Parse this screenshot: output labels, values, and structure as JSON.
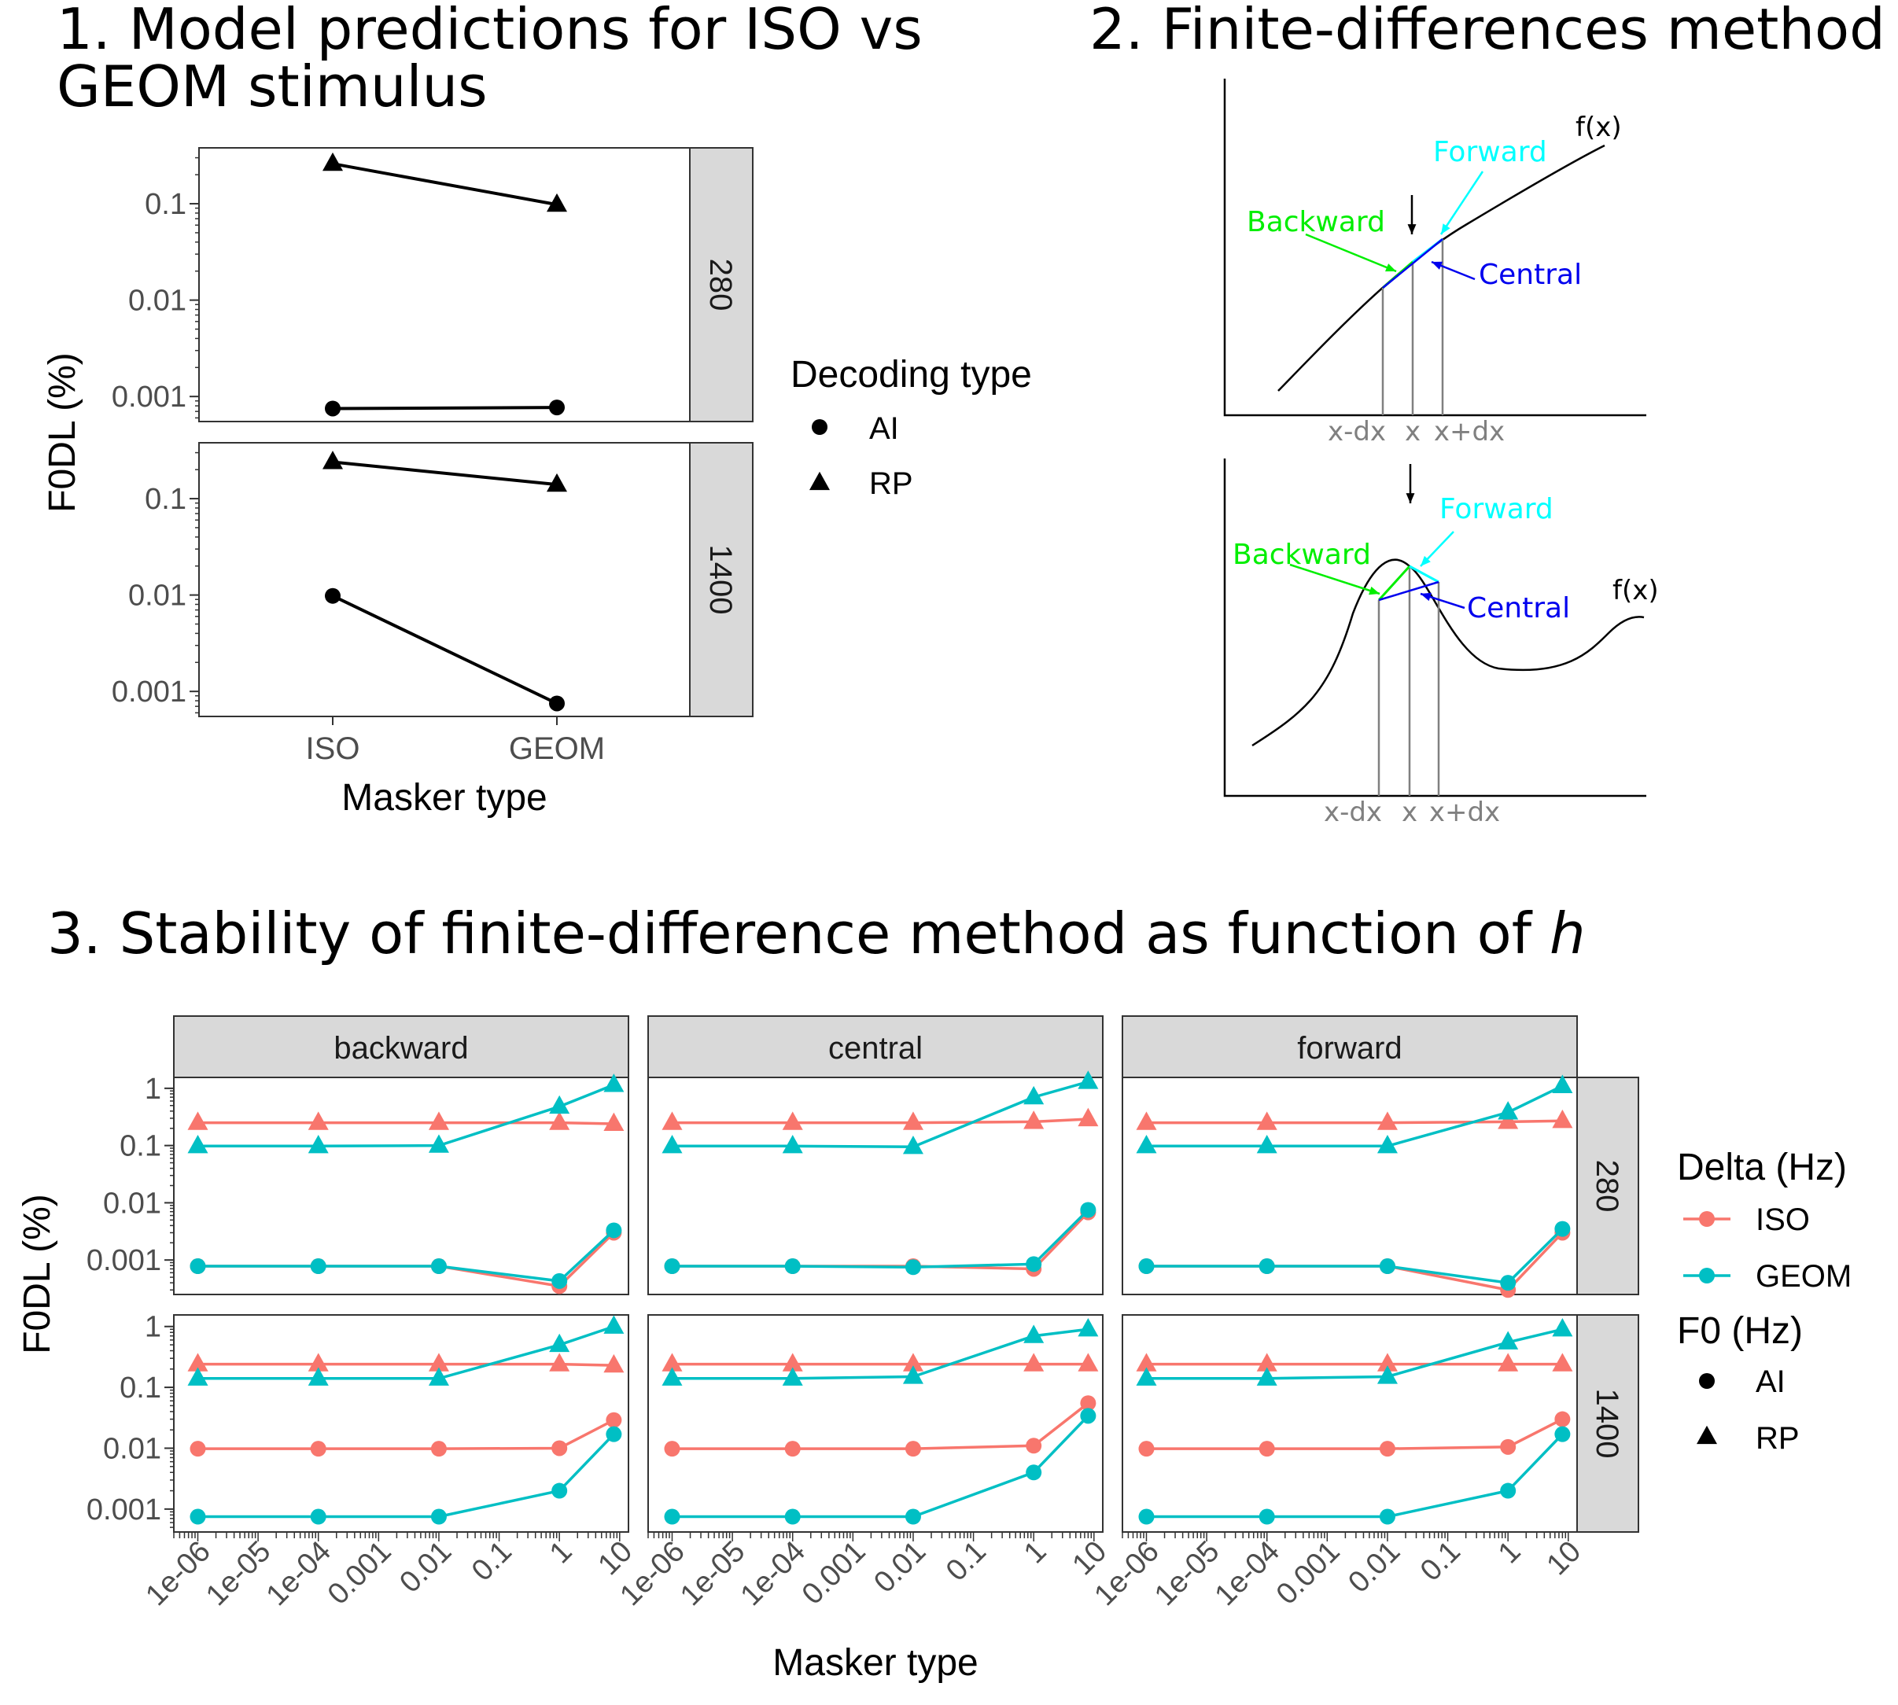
{
  "panel1": {
    "title_line1": "1. Model predictions for ISO vs",
    "title_line2": "GEOM stimulus"
  },
  "panel2": {
    "title": "2. Finite-differences method",
    "top": {
      "fx": "f(x)",
      "forward": "Forward",
      "backward": "Backward",
      "central": "Central",
      "ticks": [
        "x-dx",
        "x",
        "x+dx"
      ]
    },
    "bottom": {
      "fx": "f(x)",
      "forward": "Forward",
      "backward": "Backward",
      "central": "Central",
      "ticks": [
        "x-dx",
        "x",
        "x+dx"
      ]
    },
    "colors": {
      "forward": "#00ffff",
      "backward": "#00ee00",
      "central": "#0000ee"
    }
  },
  "panel3": {
    "title": "3. Stability of finite-difference method as function of ",
    "title_italic": "h"
  },
  "chart_data": [
    {
      "type": "line",
      "xlabel": "Masker type",
      "ylabel": "F0DL (%)",
      "categories": [
        "ISO",
        "GEOM"
      ],
      "y_scale": "log10",
      "y_ticks": [
        "0.001",
        "0.01",
        "0.1"
      ],
      "facets": [
        "280",
        "1400"
      ],
      "legend": {
        "title": "Decoding type",
        "entries": [
          "AI",
          "RP"
        ],
        "placement": "right"
      },
      "series": [
        {
          "name": "AI",
          "facet": "280",
          "values": [
            0.00075,
            0.00077
          ]
        },
        {
          "name": "RP",
          "facet": "280",
          "values": [
            0.26,
            0.098
          ]
        },
        {
          "name": "AI",
          "facet": "1400",
          "values": [
            0.0098,
            0.00075
          ]
        },
        {
          "name": "RP",
          "facet": "1400",
          "values": [
            0.24,
            0.14
          ]
        }
      ],
      "color": "#000000"
    },
    {
      "type": "line",
      "xlabel": "Masker type",
      "ylabel": "F0DL (%)",
      "x_scale": "log10",
      "x_ticks": [
        "1e-06",
        "1e-05",
        "1e-04",
        "0.001",
        "0.01",
        "0.1",
        "1",
        "10"
      ],
      "y_scale": "log10",
      "y_ticks": [
        "0.001",
        "0.01",
        "0.1",
        "1"
      ],
      "col_facets": [
        "backward",
        "central",
        "forward"
      ],
      "row_facets": [
        "280",
        "1400"
      ],
      "legend": {
        "color_title": "Delta (Hz)",
        "color_entries": [
          "ISO",
          "GEOM"
        ],
        "shape_title": "F0 (Hz)",
        "shape_entries": [
          "AI",
          "RP"
        ],
        "placement": "right"
      },
      "colors": {
        "ISO": "#f8766d",
        "GEOM": "#00bfc4"
      },
      "x": [
        1e-06,
        0.0001,
        0.01,
        1,
        8
      ],
      "panels": [
        {
          "col": "backward",
          "row": "280",
          "series": [
            {
              "name": "ISO",
              "shape": "RP",
              "values": [
                0.25,
                0.25,
                0.25,
                0.25,
                0.24
              ]
            },
            {
              "name": "GEOM",
              "shape": "RP",
              "values": [
                0.098,
                0.098,
                0.1,
                0.48,
                1.15
              ]
            },
            {
              "name": "ISO",
              "shape": "AI",
              "values": [
                0.00078,
                0.00078,
                0.00078,
                0.00035,
                0.003
              ]
            },
            {
              "name": "GEOM",
              "shape": "AI",
              "values": [
                0.00078,
                0.00078,
                0.00078,
                0.00043,
                0.0033
              ]
            }
          ]
        },
        {
          "col": "central",
          "row": "280",
          "series": [
            {
              "name": "ISO",
              "shape": "RP",
              "values": [
                0.25,
                0.25,
                0.25,
                0.26,
                0.29
              ]
            },
            {
              "name": "GEOM",
              "shape": "RP",
              "values": [
                0.098,
                0.098,
                0.095,
                0.7,
                1.3
              ]
            },
            {
              "name": "ISO",
              "shape": "AI",
              "values": [
                0.00078,
                0.00078,
                0.00078,
                0.0007,
                0.0068
              ]
            },
            {
              "name": "GEOM",
              "shape": "AI",
              "values": [
                0.00078,
                0.00078,
                0.00075,
                0.00085,
                0.0075
              ]
            }
          ]
        },
        {
          "col": "forward",
          "row": "280",
          "series": [
            {
              "name": "ISO",
              "shape": "RP",
              "values": [
                0.25,
                0.25,
                0.25,
                0.26,
                0.27
              ]
            },
            {
              "name": "GEOM",
              "shape": "RP",
              "values": [
                0.098,
                0.098,
                0.098,
                0.38,
                1.1
              ]
            },
            {
              "name": "ISO",
              "shape": "AI",
              "values": [
                0.00078,
                0.00078,
                0.00078,
                0.0003,
                0.003
              ]
            },
            {
              "name": "GEOM",
              "shape": "AI",
              "values": [
                0.00078,
                0.00078,
                0.00078,
                0.0004,
                0.0035
              ]
            }
          ]
        },
        {
          "col": "backward",
          "row": "1400",
          "series": [
            {
              "name": "ISO",
              "shape": "RP",
              "values": [
                0.24,
                0.24,
                0.24,
                0.24,
                0.23
              ]
            },
            {
              "name": "GEOM",
              "shape": "RP",
              "values": [
                0.14,
                0.14,
                0.14,
                0.5,
                1.0
              ]
            },
            {
              "name": "ISO",
              "shape": "AI",
              "values": [
                0.0098,
                0.0098,
                0.0098,
                0.01,
                0.029
              ]
            },
            {
              "name": "GEOM",
              "shape": "AI",
              "values": [
                0.00075,
                0.00075,
                0.00075,
                0.002,
                0.017
              ]
            }
          ]
        },
        {
          "col": "central",
          "row": "1400",
          "series": [
            {
              "name": "ISO",
              "shape": "RP",
              "values": [
                0.24,
                0.24,
                0.24,
                0.24,
                0.24
              ]
            },
            {
              "name": "GEOM",
              "shape": "RP",
              "values": [
                0.14,
                0.14,
                0.15,
                0.7,
                0.9
              ]
            },
            {
              "name": "ISO",
              "shape": "AI",
              "values": [
                0.0098,
                0.0098,
                0.0098,
                0.011,
                0.055
              ]
            },
            {
              "name": "GEOM",
              "shape": "AI",
              "values": [
                0.00075,
                0.00075,
                0.00075,
                0.004,
                0.034
              ]
            }
          ]
        },
        {
          "col": "forward",
          "row": "1400",
          "series": [
            {
              "name": "ISO",
              "shape": "RP",
              "values": [
                0.24,
                0.24,
                0.24,
                0.24,
                0.24
              ]
            },
            {
              "name": "GEOM",
              "shape": "RP",
              "values": [
                0.14,
                0.14,
                0.15,
                0.55,
                0.9
              ]
            },
            {
              "name": "ISO",
              "shape": "AI",
              "values": [
                0.0098,
                0.0098,
                0.0098,
                0.0105,
                0.03
              ]
            },
            {
              "name": "GEOM",
              "shape": "AI",
              "values": [
                0.00075,
                0.00075,
                0.00075,
                0.002,
                0.017
              ]
            }
          ]
        }
      ]
    }
  ]
}
